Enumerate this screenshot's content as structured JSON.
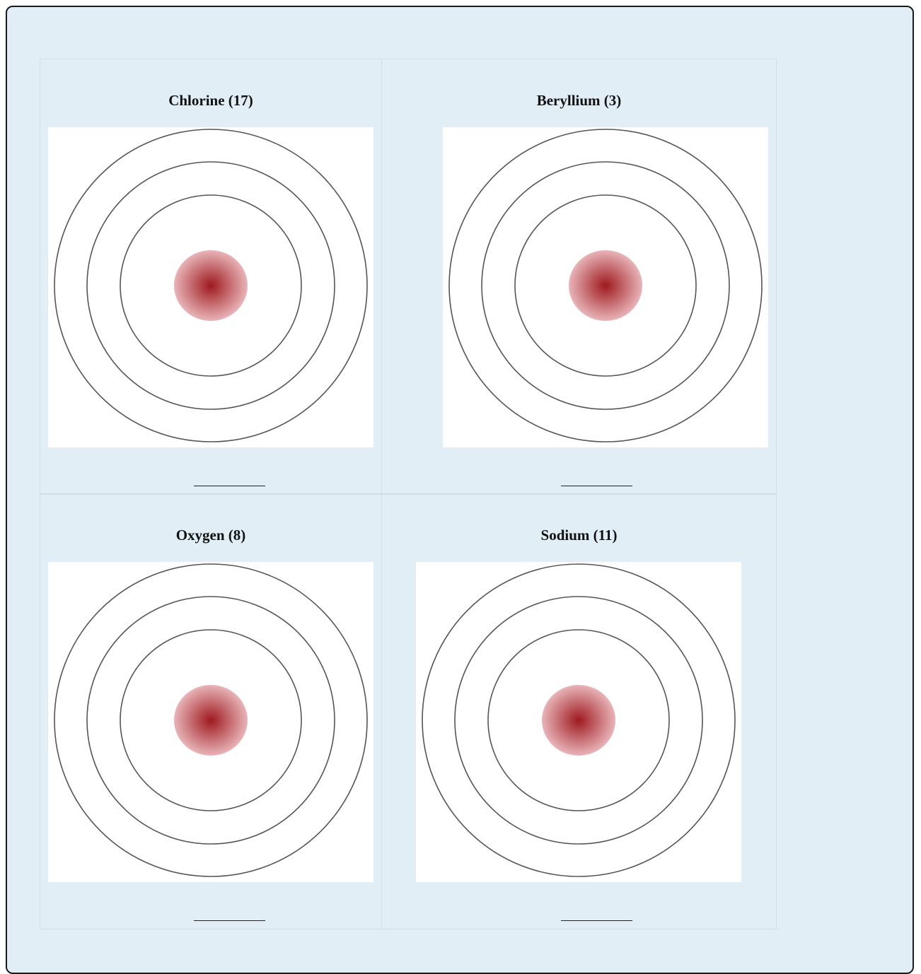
{
  "worksheet": {
    "atoms": [
      {
        "title": "Chlorine (17)",
        "answer_blank": ""
      },
      {
        "title": "Beryllium (3)",
        "answer_blank": ""
      },
      {
        "title": "Oxygen (8)",
        "answer_blank": ""
      },
      {
        "title": "Sodium (11)",
        "answer_blank": ""
      }
    ],
    "diagram": {
      "shell_count": 3,
      "shell_color": "#555555",
      "nucleus_color_center": "#9e1a1f",
      "nucleus_color_edge": "#e8b4b8"
    },
    "colors": {
      "panel_background": "#e1eef6",
      "frame_border": "#1a1a1a",
      "cell_border": "#d5dde2"
    }
  }
}
